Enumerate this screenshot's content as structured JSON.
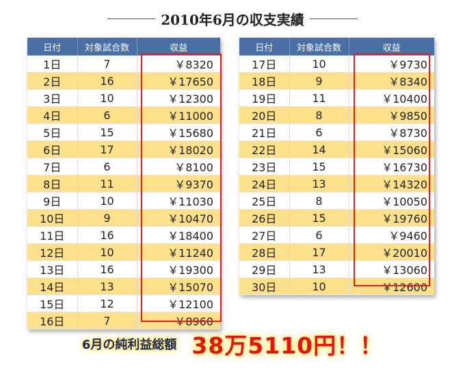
{
  "title": "2010年6月の収支実績",
  "headers": [
    "日付",
    "対象試合数",
    "収益"
  ],
  "table1": [
    {
      "day": "1日",
      "count": "7",
      "amount": "￥8320"
    },
    {
      "day": "2日",
      "count": "16",
      "amount": "￥17650"
    },
    {
      "day": "3日",
      "count": "10",
      "amount": "￥12300"
    },
    {
      "day": "4日",
      "count": "6",
      "amount": "￥11000"
    },
    {
      "day": "5日",
      "count": "15",
      "amount": "￥15680"
    },
    {
      "day": "6日",
      "count": "17",
      "amount": "￥18020"
    },
    {
      "day": "7日",
      "count": "6",
      "amount": "￥8100"
    },
    {
      "day": "8日",
      "count": "11",
      "amount": "￥9370"
    },
    {
      "day": "9日",
      "count": "10",
      "amount": "￥11030"
    },
    {
      "day": "10日",
      "count": "9",
      "amount": "￥10470"
    },
    {
      "day": "11日",
      "count": "16",
      "amount": "￥18400"
    },
    {
      "day": "12日",
      "count": "10",
      "amount": "￥11240"
    },
    {
      "day": "13日",
      "count": "16",
      "amount": "￥19300"
    },
    {
      "day": "14日",
      "count": "13",
      "amount": "￥15070"
    },
    {
      "day": "15日",
      "count": "12",
      "amount": "￥12100"
    },
    {
      "day": "16日",
      "count": "7",
      "amount": "￥8960"
    }
  ],
  "table2": [
    {
      "day": "17日",
      "count": "10",
      "amount": "￥9730"
    },
    {
      "day": "18日",
      "count": "9",
      "amount": "￥8340"
    },
    {
      "day": "19日",
      "count": "11",
      "amount": "￥10400"
    },
    {
      "day": "20日",
      "count": "8",
      "amount": "￥9850"
    },
    {
      "day": "21日",
      "count": "6",
      "amount": "￥8730"
    },
    {
      "day": "22日",
      "count": "14",
      "amount": "￥15060"
    },
    {
      "day": "23日",
      "count": "15",
      "amount": "￥16730"
    },
    {
      "day": "24日",
      "count": "13",
      "amount": "￥14320"
    },
    {
      "day": "25日",
      "count": "8",
      "amount": "￥10050"
    },
    {
      "day": "26日",
      "count": "15",
      "amount": "￥19760"
    },
    {
      "day": "27日",
      "count": "6",
      "amount": "￥9460"
    },
    {
      "day": "28日",
      "count": "17",
      "amount": "￥20010"
    },
    {
      "day": "29日",
      "count": "13",
      "amount": "￥13060"
    },
    {
      "day": "30日",
      "count": "10",
      "amount": "￥12600"
    }
  ],
  "total": {
    "label": "6月の純利益総額",
    "value": "38万5110円！！"
  },
  "colors": {
    "header_bg": "#4a6fa5",
    "row_alt": "#fde08a",
    "highlight_box": "#e02020",
    "total_value": "#e01515",
    "glow": "#ffe34a"
  }
}
